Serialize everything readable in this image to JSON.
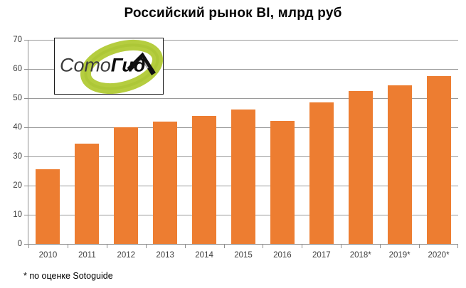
{
  "title": {
    "text": "Российский рынок BI, млрд руб"
  },
  "logo": {
    "part1": "Сото",
    "part2": "Гид"
  },
  "footnote": {
    "text": "* по оценке Sotoguide"
  },
  "colors": {
    "bar": "#ED7D31",
    "grid": "#9A9A9A",
    "axis": "#8F8F8F",
    "axis_text": "#3D3D3D",
    "logo_green": "#B5CD3F",
    "logo_arrow": "#111111"
  },
  "chart_data": {
    "type": "bar",
    "title": "Российский рынок BI, млрд руб",
    "categories": [
      "2010",
      "2011",
      "2012",
      "2013",
      "2014",
      "2015",
      "2016",
      "2017",
      "2018*",
      "2019*",
      "2020*"
    ],
    "values": [
      25.5,
      34.5,
      40,
      42,
      43.8,
      46,
      42.3,
      48.6,
      52.5,
      54.5,
      57.5
    ],
    "xlabel": "",
    "ylabel": "",
    "ylim": [
      0,
      70
    ],
    "yticks": [
      0,
      10,
      20,
      30,
      40,
      50,
      60,
      70
    ],
    "grid": true,
    "legend_position": "none",
    "footnote": "* по оценке Sotoguide"
  }
}
